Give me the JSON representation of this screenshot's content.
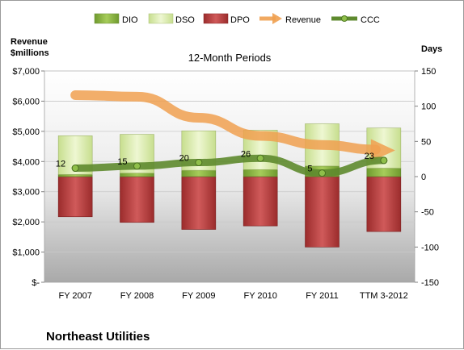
{
  "chart_data": {
    "type": "bar",
    "title": "12-Month Periods",
    "company": "Northeast Utilities",
    "left_axis_label": "Revenue\n$millions",
    "right_axis_label": "Days",
    "categories": [
      "FY 2007",
      "FY 2008",
      "FY 2009",
      "FY 2010",
      "FY 2011",
      "TTM 3-2012"
    ],
    "left_axis": {
      "min": 0,
      "max": 7000,
      "step": 1000,
      "tick_labels": [
        "$-",
        "$1,000",
        "$2,000",
        "$3,000",
        "$4,000",
        "$5,000",
        "$6,000",
        "$7,000"
      ]
    },
    "right_axis": {
      "min": -150,
      "max": 150,
      "step": 50,
      "tick_labels": [
        "-150",
        "-100",
        "-50",
        "0",
        "50",
        "100",
        "150"
      ]
    },
    "legend_position": "top",
    "legend": [
      {
        "name": "DIO",
        "color": "#86b03c",
        "shape": "box"
      },
      {
        "name": "DSO",
        "color": "#d9ecac",
        "shape": "box"
      },
      {
        "name": "DPO",
        "color": "#b53a3a",
        "shape": "box"
      },
      {
        "name": "Revenue",
        "color": "#f0a050",
        "shape": "arrow"
      },
      {
        "name": "CCC",
        "color": "#5e8a2e",
        "shape": "line-marker"
      }
    ],
    "series": [
      {
        "name": "DIO",
        "values": [
          3,
          5,
          9,
          10,
          15,
          12
        ]
      },
      {
        "name": "DSO",
        "values": [
          55,
          55,
          56,
          56,
          60,
          57
        ]
      },
      {
        "name": "DPO",
        "values": [
          -57,
          -65,
          -75,
          -70,
          -100,
          -78
        ]
      },
      {
        "name": "Revenue",
        "axis": "left",
        "values": [
          6200,
          6150,
          5450,
          4850,
          4550,
          4450
        ]
      },
      {
        "name": "CCC",
        "values": [
          12,
          15,
          20,
          26,
          5,
          23
        ]
      }
    ],
    "data_labels": [
      "12",
      "15",
      "20",
      "26",
      "5",
      "23"
    ],
    "colors": {
      "dio": "#86b03c",
      "dso": "#d9ecac",
      "dpo": "#b53a3a",
      "revenue": "#f0a050",
      "ccc": "#5e8a2e",
      "ccc_marker": "#8fbf4a"
    }
  }
}
